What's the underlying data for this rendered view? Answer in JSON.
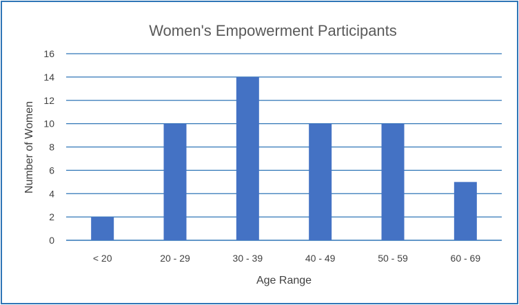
{
  "chart_data": {
    "type": "bar",
    "title": "Women's Empowerment Participants",
    "xlabel": "Age Range",
    "ylabel": "Number of Women",
    "categories": [
      "< 20",
      "20 - 29",
      "30 - 39",
      "40 - 49",
      "50 - 59",
      "60 - 69"
    ],
    "values": [
      2,
      10,
      14,
      10,
      10,
      5
    ],
    "ylim": [
      0,
      16
    ],
    "yticks": [
      0,
      2,
      4,
      6,
      8,
      10,
      12,
      14,
      16
    ],
    "grid": true,
    "legend": "none",
    "colors": {
      "bar": "#4472c4",
      "gridline": "#2e75b6",
      "border": "#2e75b6"
    }
  }
}
